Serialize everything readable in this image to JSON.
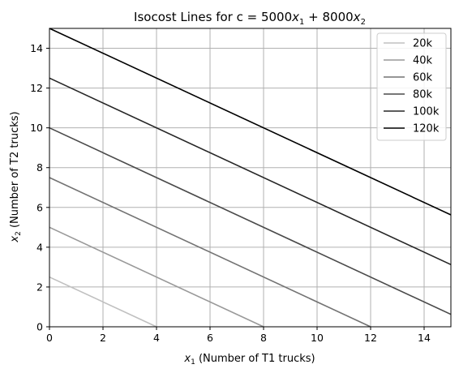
{
  "chart_data": {
    "type": "line",
    "title": {
      "prefix": "Isocost Lines for c = 5000",
      "x1": "x",
      "x1_sub": "1",
      "mid": " + 8000",
      "x2": "x",
      "x2_sub": "2"
    },
    "xlabel": {
      "var": "x",
      "sub": "1",
      "text": " (Number of T1 trucks)"
    },
    "ylabel": {
      "var": "x",
      "sub": "2",
      "text": " (Number of T2 trucks)"
    },
    "xlim": [
      0,
      15
    ],
    "ylim": [
      0,
      15
    ],
    "xticks": [
      0,
      2,
      4,
      6,
      8,
      10,
      12,
      14
    ],
    "yticks": [
      0,
      2,
      4,
      6,
      8,
      10,
      12,
      14
    ],
    "xtick_labels": [
      "0",
      "2",
      "4",
      "6",
      "8",
      "10",
      "12",
      "14"
    ],
    "ytick_labels": [
      "0",
      "2",
      "4",
      "6",
      "8",
      "10",
      "12",
      "14"
    ],
    "grid": true,
    "legend_position": "top-right",
    "cost_coefficients": {
      "x1": 5000,
      "x2": 8000
    },
    "series": [
      {
        "name": "20k",
        "cost": 20000,
        "color": "#c0c0c0",
        "x": [
          0,
          4
        ],
        "y": [
          2.5,
          0
        ]
      },
      {
        "name": "40k",
        "cost": 40000,
        "color": "#999999",
        "x": [
          0,
          8
        ],
        "y": [
          5,
          0
        ]
      },
      {
        "name": "60k",
        "cost": 60000,
        "color": "#737373",
        "x": [
          0,
          12
        ],
        "y": [
          7.5,
          0
        ]
      },
      {
        "name": "80k",
        "cost": 80000,
        "color": "#4a4a4a",
        "x": [
          0,
          15
        ],
        "y": [
          10,
          0.625
        ]
      },
      {
        "name": "100k",
        "cost": 100000,
        "color": "#262626",
        "x": [
          0,
          15
        ],
        "y": [
          12.5,
          3.125
        ]
      },
      {
        "name": "120k",
        "cost": 120000,
        "color": "#000000",
        "x": [
          0,
          15
        ],
        "y": [
          15,
          5.625
        ]
      }
    ]
  }
}
